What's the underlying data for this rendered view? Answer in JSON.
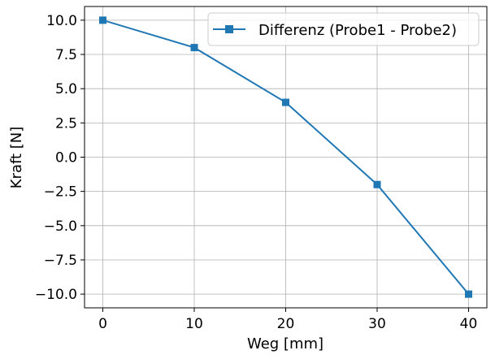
{
  "chart_data": {
    "type": "line",
    "xlabel": "Weg [mm]",
    "ylabel": "Kraft [N]",
    "x": [
      0,
      10,
      20,
      30,
      40
    ],
    "series": [
      {
        "name": "Differenz (Probe1 - Probe2)",
        "values": [
          10.0,
          8.0,
          4.0,
          -2.0,
          -10.0
        ],
        "color": "#1f77b4",
        "marker": "square"
      }
    ],
    "xlim": [
      -2,
      42
    ],
    "ylim": [
      -11,
      11
    ],
    "xticks": [
      0,
      10,
      20,
      30,
      40
    ],
    "xtick_labels": [
      "0",
      "10",
      "20",
      "30",
      "40"
    ],
    "yticks": [
      10.0,
      7.5,
      5.0,
      2.5,
      0.0,
      -2.5,
      -5.0,
      -7.5,
      -10.0
    ],
    "ytick_labels": [
      "10.0",
      "7.5",
      "5.0",
      "2.5",
      "0.0",
      "−2.5",
      "−5.0",
      "−7.5",
      "−10.0"
    ],
    "grid": true,
    "legend_position": "top-right"
  }
}
